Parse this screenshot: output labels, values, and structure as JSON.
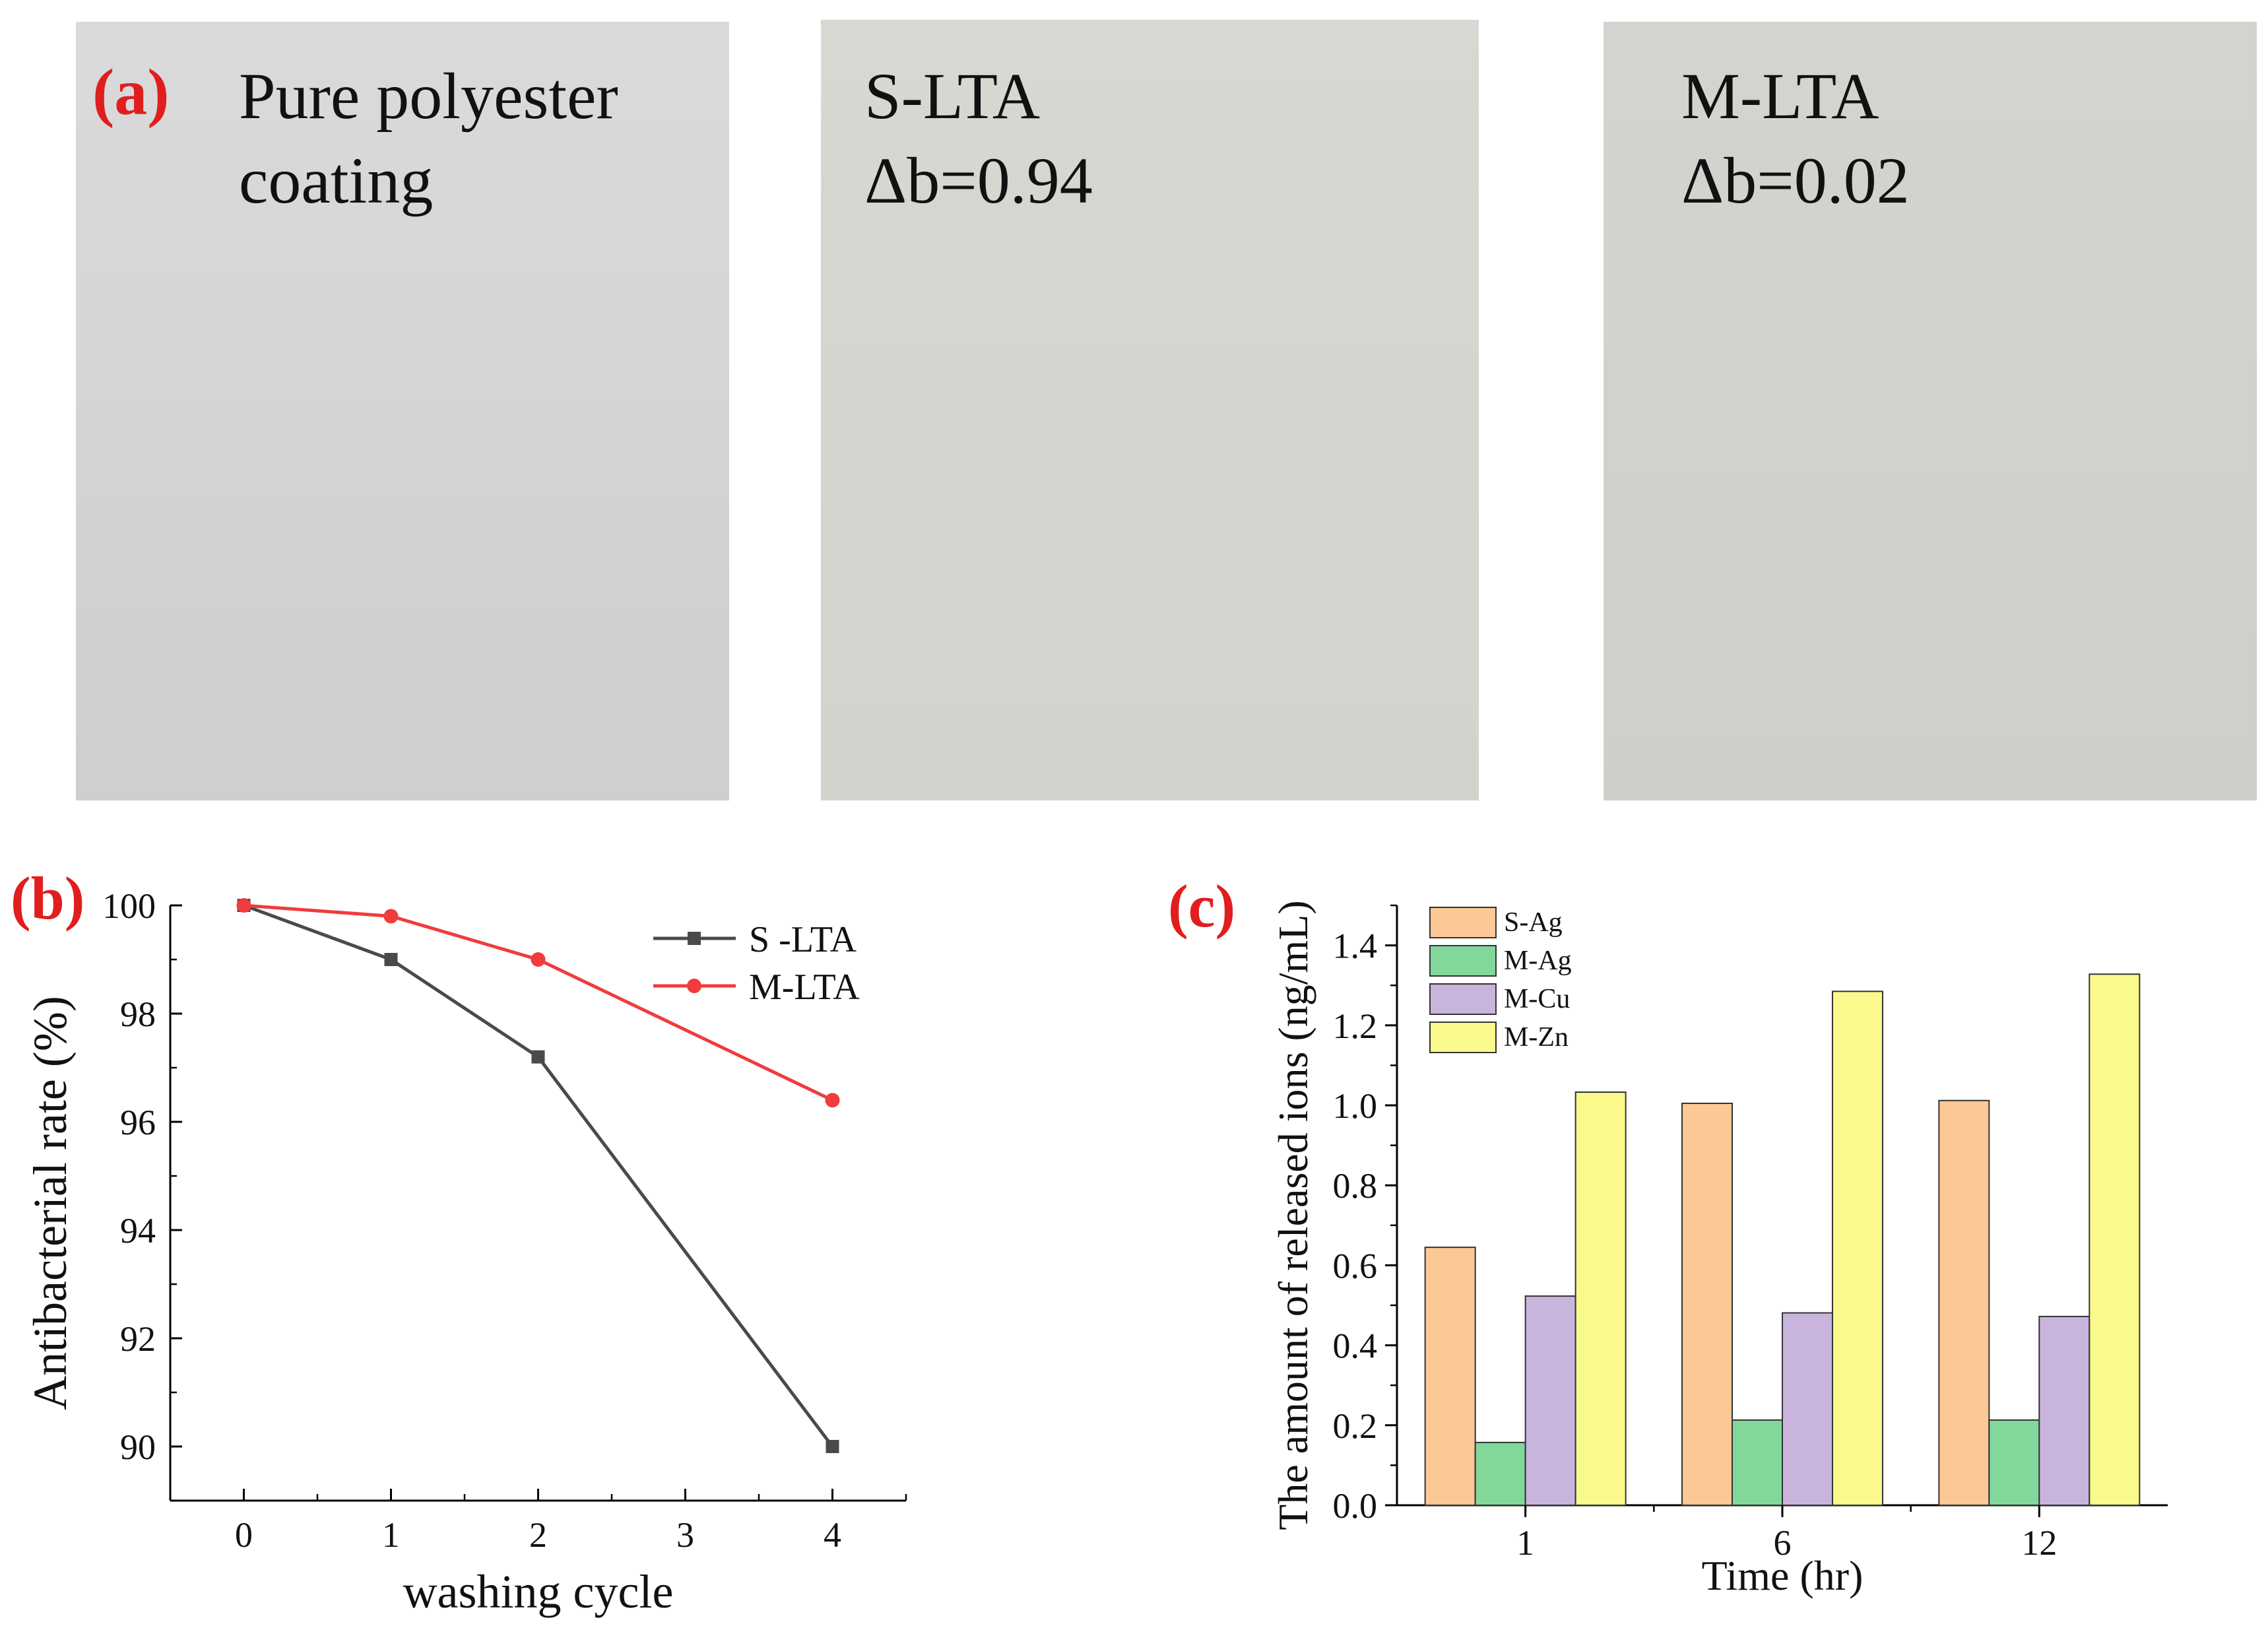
{
  "panel_a": {
    "label": "(a)",
    "samples": [
      {
        "line1": "Pure polyester",
        "line2": "coating"
      },
      {
        "line1": "S-LTA",
        "line2": "Δb=0.94"
      },
      {
        "line1": "M-LTA",
        "line2": "Δb=0.02"
      }
    ]
  },
  "chart_data": [
    {
      "panel_label": "(b)",
      "type": "line",
      "xlabel": "washing cycle",
      "ylabel": "Antibacterial rate (%)",
      "xlim": [
        -0.5,
        4.5
      ],
      "ylim": [
        89,
        100
      ],
      "xticks": [
        "0",
        "1",
        "2",
        "3",
        "4"
      ],
      "yticks": [
        "90",
        "92",
        "94",
        "96",
        "98",
        "100"
      ],
      "x": [
        0,
        1,
        2,
        4
      ],
      "series": [
        {
          "name": "S -LTA",
          "color": "#4a4a4a",
          "marker": "square",
          "values": [
            100,
            99.0,
            97.2,
            90.0
          ]
        },
        {
          "name": "M-LTA",
          "color": "#f03c3c",
          "marker": "circle",
          "values": [
            100,
            99.8,
            99.0,
            96.4
          ]
        }
      ],
      "legend": "top-right"
    },
    {
      "panel_label": "(c)",
      "type": "bar",
      "xlabel": "Time (hr)",
      "ylabel": "The amount of released ions (ng/mL)",
      "categories": [
        "1",
        "6",
        "12"
      ],
      "ylim": [
        0,
        1.5
      ],
      "yticks": [
        "0.0",
        "0.2",
        "0.4",
        "0.6",
        "0.8",
        "1.0",
        "1.2",
        "1.4"
      ],
      "series": [
        {
          "name": "S-Ag",
          "color": "#fcc896",
          "values": [
            0.645,
            1.005,
            1.012
          ]
        },
        {
          "name": "M-Ag",
          "color": "#82d89b",
          "values": [
            0.157,
            0.213,
            0.213
          ]
        },
        {
          "name": "M-Cu",
          "color": "#c8b4dc",
          "values": [
            0.523,
            0.481,
            0.472
          ]
        },
        {
          "name": "M-Zn",
          "color": "#fafa8c",
          "values": [
            1.033,
            1.285,
            1.328
          ]
        }
      ],
      "legend": "top-left"
    }
  ]
}
